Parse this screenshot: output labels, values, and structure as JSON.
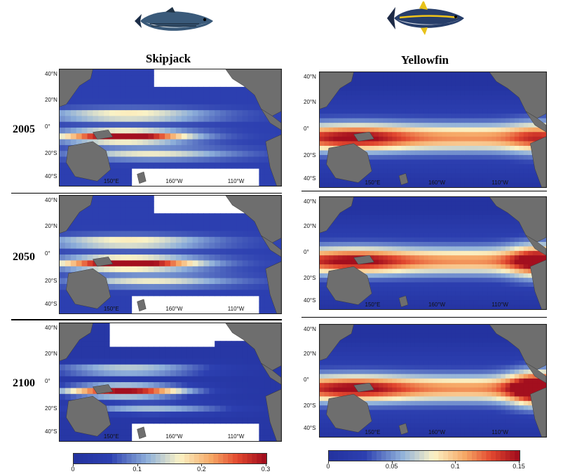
{
  "columns": [
    {
      "title": "Skipjack",
      "fish_icon": "skipjack-tuna-illustration"
    },
    {
      "title": "Yellowfin",
      "fish_icon": "yellowfin-tuna-illustration"
    }
  ],
  "years": [
    "2005",
    "2050",
    "2100"
  ],
  "lat_labels": [
    "40°N",
    "20°N",
    "0°",
    "20°S",
    "40°S"
  ],
  "lon_labels": [
    "150°E",
    "160°W",
    "110°W"
  ],
  "colorbars": [
    {
      "species": "Skipjack",
      "min": 0,
      "max": 0.3,
      "tick_labels": [
        "0",
        "0.1",
        "0.2",
        "0.3"
      ]
    },
    {
      "species": "Yellowfin",
      "min": 0,
      "max": 0.15,
      "tick_labels": [
        "0",
        "0.05",
        "0.1",
        "0.15"
      ]
    }
  ],
  "colors": {
    "low": "#2c3fb0",
    "mid": "#fbf3c6",
    "high": "#a30f1e",
    "land": "#6e6e6e"
  }
}
